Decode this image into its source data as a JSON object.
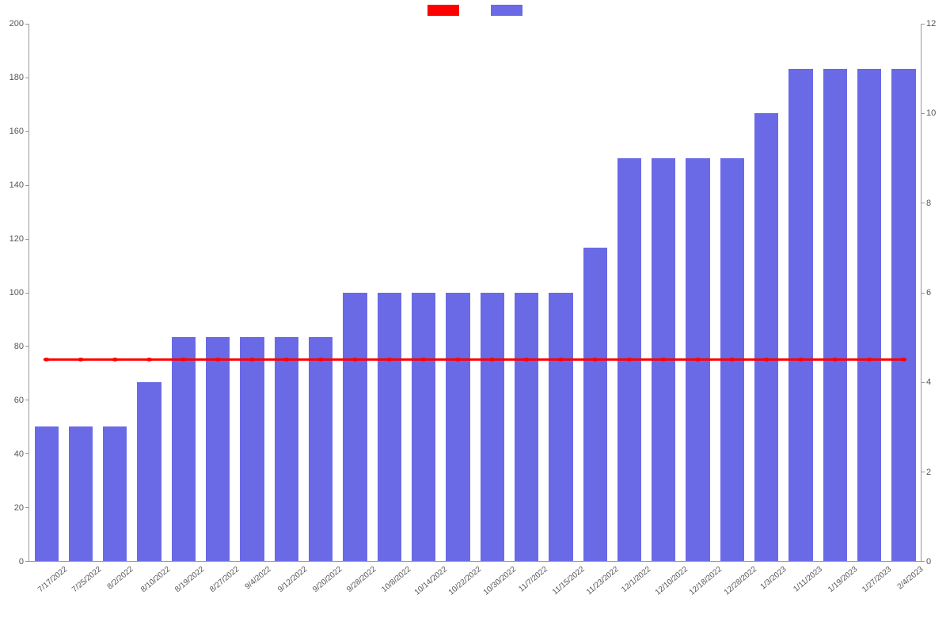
{
  "chart": {
    "type": "bar_line_combo",
    "background_color": "#ffffff",
    "axis_color": "#999999",
    "label_color": "#555555",
    "label_fontsize": 10,
    "tick_fontsize": 11,
    "legend": {
      "line_color": "#ff0000",
      "bar_color": "#6a6ae6"
    },
    "y_left": {
      "min": 0,
      "max": 200,
      "step": 20,
      "ticks": [
        0,
        20,
        40,
        60,
        80,
        100,
        120,
        140,
        160,
        180,
        200
      ]
    },
    "y_right": {
      "min": 0,
      "max": 12,
      "step": 2,
      "ticks": [
        0,
        2,
        4,
        6,
        8,
        10,
        12
      ]
    },
    "categories": [
      "7/17/2022",
      "7/25/2022",
      "8/2/2022",
      "8/10/2022",
      "8/19/2022",
      "8/27/2022",
      "9/4/2022",
      "9/12/2022",
      "9/20/2022",
      "9/28/2022",
      "10/8/2022",
      "10/14/2022",
      "10/22/2022",
      "10/30/2022",
      "11/7/2022",
      "11/15/2022",
      "11/23/2022",
      "12/1/2022",
      "12/10/2022",
      "12/18/2022",
      "12/28/2022",
      "1/3/2023",
      "1/11/2023",
      "1/19/2023",
      "1/27/2023",
      "2/4/2023"
    ],
    "bars": {
      "color": "#6a6ae6",
      "values_right_scale": [
        3,
        3,
        3,
        4,
        5,
        5,
        5,
        5,
        5,
        6,
        6,
        6,
        6,
        6,
        6,
        6,
        7,
        9,
        9,
        9,
        9,
        10,
        11,
        11,
        11,
        11
      ]
    },
    "line": {
      "color": "#ff0000",
      "width": 3,
      "marker_radius": 3,
      "value_left_scale": 75
    }
  }
}
